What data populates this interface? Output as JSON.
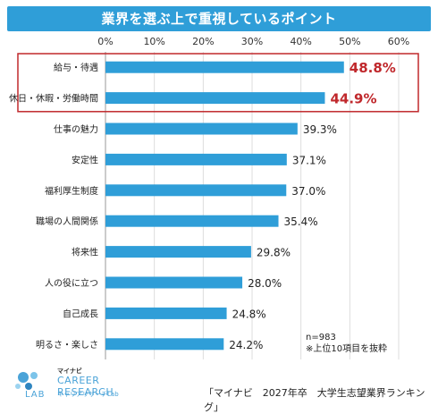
{
  "header": {
    "title": "業界を選ぶ上で重視しているポイント"
  },
  "colors": {
    "header": "#2f9ed8",
    "bar": "#2f9ed8",
    "highlight_value": "#c0282c",
    "highlight_box": "#c0282c",
    "grid": "#dddddd"
  },
  "chart_data": {
    "type": "bar",
    "orientation": "horizontal",
    "categories": [
      "給与・待遇",
      "休日・休暇・労働時間",
      "仕事の魅力",
      "安定性",
      "福利厚生制度",
      "職場の人間関係",
      "将来性",
      "人の役に立つ",
      "自己成長",
      "明るさ・楽しさ"
    ],
    "values": [
      48.8,
      44.9,
      39.3,
      37.1,
      37.0,
      35.4,
      29.8,
      28.0,
      24.8,
      24.2
    ],
    "value_labels": [
      "48.8%",
      "44.9%",
      "39.3%",
      "37.1%",
      "37.0%",
      "35.4%",
      "29.8%",
      "28.0%",
      "24.8%",
      "24.2%"
    ],
    "highlighted": [
      0,
      1
    ],
    "xlim": [
      0,
      60
    ],
    "xticks": [
      "0%",
      "10%",
      "20%",
      "30%",
      "40%",
      "50%",
      "60%"
    ],
    "grid": true
  },
  "note": {
    "line1": "n=983",
    "line2": "※上位10項目を抜粋"
  },
  "source": "「マイナビ　2027年卒　大学生志望業界ランキング」",
  "logo": {
    "top": "マイナビ",
    "main": "CAREER RESEARCH",
    "lab": "LAB",
    "sub": "キャリアリサーチLab"
  }
}
